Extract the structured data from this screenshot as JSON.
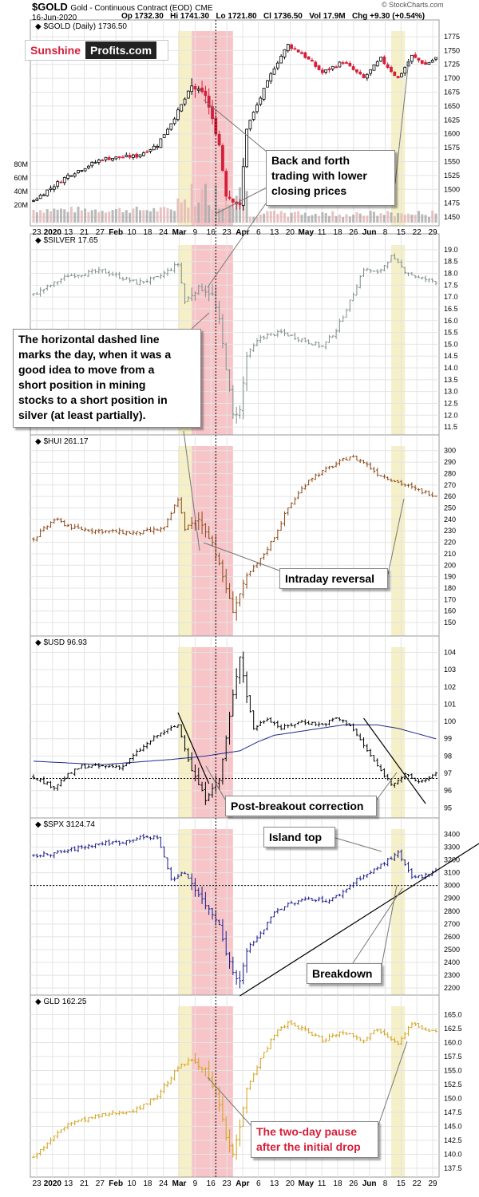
{
  "header": {
    "symbol": "$GOLD",
    "description": "Gold - Continuous Contract (EOD)",
    "exchange": "CME",
    "date": "16-Jun-2020",
    "open": "Op 1732.30",
    "high": "Hi 1741.30",
    "low": "Lo 1721.80",
    "close": "Cl 1736.50",
    "volume": "Vol 17.9M",
    "change": "Chg +9.30 (+0.54%)",
    "copyright": "© StockCharts.com"
  },
  "logo": {
    "left": "Sunshine",
    "right": "Profits.com"
  },
  "colors": {
    "up_candle": "#000000",
    "down_candle": "#d4203a",
    "silver": "#7f8c8d",
    "hui": "#8b4513",
    "usd": "#000000",
    "usd_ma": "#1f2a8a",
    "spx": "#1a1a8c",
    "gld": "#d4a017",
    "volume": "#a8a8a8",
    "highlight_yellow": "#f5f0c8",
    "highlight_red": "#f7c5c8"
  },
  "annotations": {
    "back_forth": [
      "Back and forth",
      "trading with lower",
      "closing prices"
    ],
    "dashed_line": [
      "The horizontal dashed line",
      "marks the day, when it was a",
      "good idea to move from a",
      "short position in mining",
      "stocks to a short position in",
      "silver (at least partially)."
    ],
    "intraday_reversal": "Intraday reversal",
    "post_breakout": "Post-breakout correction",
    "island_top": "Island top",
    "breakdown": "Breakdown",
    "two_day_pause": [
      "The two-day pause",
      "after the initial drop"
    ]
  },
  "chart_data": [
    {
      "type": "candlestick",
      "title": "$GOLD (Daily) 1736.50",
      "ylim": [
        1440,
        1785
      ],
      "yticks": [
        1450,
        1475,
        1500,
        1525,
        1550,
        1575,
        1600,
        1625,
        1650,
        1675,
        1700,
        1725,
        1750,
        1775
      ],
      "volume_ticks": [
        "20M",
        "40M",
        "60M",
        "80M"
      ],
      "x_tick_labels": [
        "23",
        "2020",
        "13",
        "21",
        "27",
        "Feb",
        "10",
        "18",
        "24",
        "Mar",
        "9",
        "16",
        "23",
        "Apr",
        "6",
        "13",
        "20",
        "May",
        "11",
        "18",
        "26",
        "Jun",
        "8",
        "15",
        "22",
        "29"
      ],
      "anchors": [
        [
          0,
          1480
        ],
        [
          10,
          1525
        ],
        [
          20,
          1555
        ],
        [
          30,
          1560
        ],
        [
          36,
          1580
        ],
        [
          42,
          1640
        ],
        [
          46,
          1685
        ],
        [
          50,
          1670
        ],
        [
          54,
          1580
        ],
        [
          56,
          1490
        ],
        [
          58,
          1480
        ],
        [
          60,
          1470
        ],
        [
          62,
          1610
        ],
        [
          66,
          1665
        ],
        [
          70,
          1720
        ],
        [
          74,
          1760
        ],
        [
          78,
          1745
        ],
        [
          84,
          1710
        ],
        [
          90,
          1730
        ],
        [
          96,
          1700
        ],
        [
          101,
          1735
        ],
        [
          106,
          1700
        ],
        [
          110,
          1740
        ],
        [
          114,
          1725
        ],
        [
          117,
          1736.5
        ]
      ]
    },
    {
      "type": "ohlc",
      "title": "$SILVER 17.65",
      "ylim": [
        11.3,
        19.2
      ],
      "yticks": [
        11.5,
        12.0,
        12.5,
        13.0,
        13.5,
        14.0,
        14.5,
        15.0,
        15.5,
        16.0,
        16.5,
        17.0,
        17.5,
        18.0,
        18.5,
        19.0
      ],
      "anchors": [
        [
          0,
          17.1
        ],
        [
          10,
          17.9
        ],
        [
          20,
          18.1
        ],
        [
          30,
          17.6
        ],
        [
          36,
          17.8
        ],
        [
          42,
          18.4
        ],
        [
          44,
          16.8
        ],
        [
          48,
          17.4
        ],
        [
          52,
          17.1
        ],
        [
          54,
          16.0
        ],
        [
          56,
          14.0
        ],
        [
          58,
          12.0
        ],
        [
          60,
          12.2
        ],
        [
          62,
          14.5
        ],
        [
          66,
          15.3
        ],
        [
          72,
          15.5
        ],
        [
          78,
          15.2
        ],
        [
          84,
          14.9
        ],
        [
          88,
          15.6
        ],
        [
          92,
          16.8
        ],
        [
          96,
          18.2
        ],
        [
          100,
          18.0
        ],
        [
          104,
          18.7
        ],
        [
          108,
          18.1
        ],
        [
          112,
          17.8
        ],
        [
          117,
          17.65
        ]
      ]
    },
    {
      "type": "ohlc",
      "title": "$HUI 261.17",
      "ylim": [
        141,
        304
      ],
      "yticks": [
        150,
        160,
        170,
        180,
        190,
        200,
        210,
        220,
        230,
        240,
        250,
        260,
        270,
        280,
        290,
        300
      ],
      "anchors": [
        [
          0,
          223
        ],
        [
          6,
          240
        ],
        [
          12,
          232
        ],
        [
          20,
          230
        ],
        [
          30,
          228
        ],
        [
          38,
          232
        ],
        [
          42,
          258
        ],
        [
          44,
          232
        ],
        [
          48,
          240
        ],
        [
          52,
          220
        ],
        [
          54,
          200
        ],
        [
          56,
          180
        ],
        [
          58,
          160
        ],
        [
          60,
          175
        ],
        [
          62,
          190
        ],
        [
          66,
          205
        ],
        [
          70,
          225
        ],
        [
          74,
          250
        ],
        [
          80,
          275
        ],
        [
          86,
          285
        ],
        [
          92,
          295
        ],
        [
          96,
          290
        ],
        [
          100,
          280
        ],
        [
          104,
          275
        ],
        [
          108,
          270
        ],
        [
          112,
          265
        ],
        [
          117,
          261.17
        ]
      ]
    },
    {
      "type": "ohlc",
      "title": "$USD 96.93",
      "ylim": [
        94.6,
        104.3
      ],
      "yticks": [
        95,
        96,
        97,
        98,
        99,
        100,
        101,
        102,
        103,
        104
      ],
      "dashed_level": 96.7,
      "moving_average": [
        [
          0,
          97.7
        ],
        [
          20,
          97.5
        ],
        [
          40,
          97.8
        ],
        [
          50,
          98.0
        ],
        [
          60,
          98.3
        ],
        [
          65,
          98.8
        ],
        [
          70,
          99.2
        ],
        [
          80,
          99.5
        ],
        [
          90,
          99.8
        ],
        [
          100,
          99.8
        ],
        [
          106,
          99.6
        ],
        [
          117,
          99.0
        ]
      ],
      "anchors": [
        [
          0,
          96.8
        ],
        [
          6,
          96.2
        ],
        [
          10,
          96.9
        ],
        [
          14,
          97.4
        ],
        [
          20,
          97.4
        ],
        [
          26,
          97.4
        ],
        [
          30,
          98.2
        ],
        [
          36,
          99.2
        ],
        [
          42,
          99.8
        ],
        [
          46,
          97.2
        ],
        [
          50,
          95.5
        ],
        [
          52,
          96.2
        ],
        [
          54,
          96.6
        ],
        [
          56,
          99.0
        ],
        [
          58,
          101.5
        ],
        [
          60,
          103.8
        ],
        [
          62,
          101.5
        ],
        [
          64,
          99.6
        ],
        [
          68,
          100.2
        ],
        [
          72,
          99.6
        ],
        [
          78,
          100.0
        ],
        [
          84,
          99.8
        ],
        [
          88,
          100.2
        ],
        [
          92,
          99.8
        ],
        [
          96,
          98.6
        ],
        [
          100,
          97.4
        ],
        [
          104,
          96.4
        ],
        [
          108,
          96.9
        ],
        [
          112,
          96.5
        ],
        [
          117,
          96.93
        ]
      ]
    },
    {
      "type": "ohlc",
      "title": "$SPX 3124.74",
      "ylim": [
        2170,
        3440
      ],
      "yticks": [
        2200,
        2300,
        2400,
        2500,
        2600,
        2700,
        2800,
        2900,
        3000,
        3100,
        3200,
        3300,
        3400
      ],
      "dashed_level": 3000,
      "anchors": [
        [
          0,
          3230
        ],
        [
          8,
          3260
        ],
        [
          14,
          3300
        ],
        [
          20,
          3330
        ],
        [
          26,
          3340
        ],
        [
          30,
          3370
        ],
        [
          36,
          3380
        ],
        [
          40,
          3050
        ],
        [
          44,
          3100
        ],
        [
          50,
          2850
        ],
        [
          54,
          2700
        ],
        [
          56,
          2480
        ],
        [
          58,
          2320
        ],
        [
          60,
          2250
        ],
        [
          62,
          2500
        ],
        [
          66,
          2620
        ],
        [
          70,
          2800
        ],
        [
          74,
          2850
        ],
        [
          80,
          2900
        ],
        [
          86,
          2880
        ],
        [
          90,
          2950
        ],
        [
          94,
          3050
        ],
        [
          98,
          3100
        ],
        [
          102,
          3180
        ],
        [
          106,
          3250
        ],
        [
          110,
          3060
        ],
        [
          114,
          3080
        ],
        [
          117,
          3124.74
        ]
      ]
    },
    {
      "type": "ohlc",
      "title": "GLD 162.25",
      "ylim": [
        136.5,
        166.5
      ],
      "yticks": [
        137.5,
        140.0,
        142.5,
        145.0,
        147.5,
        150.0,
        152.5,
        155.0,
        157.5,
        160.0,
        162.5,
        165.0
      ],
      "anchors": [
        [
          0,
          139.6
        ],
        [
          10,
          145.5
        ],
        [
          20,
          147.0
        ],
        [
          30,
          148.0
        ],
        [
          36,
          150.5
        ],
        [
          42,
          155.5
        ],
        [
          46,
          157.0
        ],
        [
          50,
          155.0
        ],
        [
          54,
          149.0
        ],
        [
          56,
          143.0
        ],
        [
          58,
          140.0
        ],
        [
          60,
          145.0
        ],
        [
          62,
          152.0
        ],
        [
          66,
          157.0
        ],
        [
          70,
          161.5
        ],
        [
          74,
          163.5
        ],
        [
          78,
          162.5
        ],
        [
          84,
          160.5
        ],
        [
          90,
          162.0
        ],
        [
          96,
          160.5
        ],
        [
          100,
          162.5
        ],
        [
          106,
          160.0
        ],
        [
          110,
          163.5
        ],
        [
          114,
          162.0
        ],
        [
          117,
          162.25
        ]
      ]
    }
  ],
  "x_axis_labels": [
    "23",
    "2020",
    "13",
    "21",
    "27",
    "Feb",
    "10",
    "18",
    "24",
    "Mar",
    "9",
    "16",
    "23",
    "Apr",
    "6",
    "13",
    "20",
    "May",
    "11",
    "18",
    "26",
    "Jun",
    "8",
    "15",
    "22",
    "29"
  ]
}
